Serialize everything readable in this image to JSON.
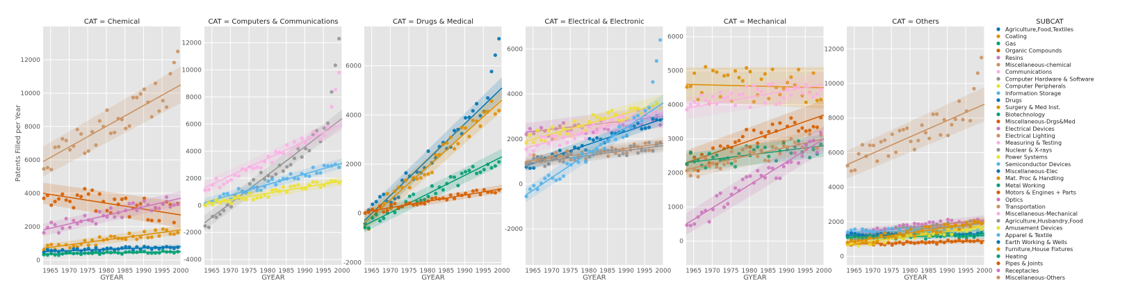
{
  "figure": {
    "ylabel": "Patents Filled per Year",
    "xlabel": "GYEAR",
    "legend_title": "SUBCAT"
  },
  "chart_data": {
    "type": "scatter",
    "x_ticks": [
      1965,
      1970,
      1975,
      1980,
      1985,
      1990,
      1995,
      2000
    ],
    "xlim": [
      1963,
      2000
    ],
    "legend_placement": "right",
    "grid": true,
    "subcategories": [
      {
        "name": "Agriculture,Food,Textiles",
        "color": "#0173b2"
      },
      {
        "name": "Coating",
        "color": "#de8f05"
      },
      {
        "name": "Gas",
        "color": "#029e73"
      },
      {
        "name": "Organic Compounds",
        "color": "#d55e00"
      },
      {
        "name": "Resins",
        "color": "#cc78bc"
      },
      {
        "name": "Miscellaneous-chemical",
        "color": "#ca9161"
      },
      {
        "name": "Communications",
        "color": "#fbafe4"
      },
      {
        "name": "Computer Hardware & Software",
        "color": "#949494"
      },
      {
        "name": "Computer Peripherals",
        "color": "#ece133"
      },
      {
        "name": "Information Storage",
        "color": "#56b4e9"
      },
      {
        "name": "Drugs",
        "color": "#0173b2"
      },
      {
        "name": "Surgery & Med Inst.",
        "color": "#de8f05"
      },
      {
        "name": "Biotechnology",
        "color": "#029e73"
      },
      {
        "name": "Miscellaneous-Drgs&Med",
        "color": "#d55e00"
      },
      {
        "name": "Electrical Devices",
        "color": "#cc78bc"
      },
      {
        "name": "Electrical Lighting",
        "color": "#ca9161"
      },
      {
        "name": "Measuring & Testing",
        "color": "#fbafe4"
      },
      {
        "name": "Nuclear & X-rays",
        "color": "#949494"
      },
      {
        "name": "Power Systems",
        "color": "#ece133"
      },
      {
        "name": "Semiconductor Devices",
        "color": "#56b4e9"
      },
      {
        "name": "Miscellaneous-Elec",
        "color": "#0173b2"
      },
      {
        "name": "Mat. Proc & Handling",
        "color": "#de8f05"
      },
      {
        "name": "Metal Working",
        "color": "#029e73"
      },
      {
        "name": "Motors & Engines + Parts",
        "color": "#d55e00"
      },
      {
        "name": "Optics",
        "color": "#cc78bc"
      },
      {
        "name": "Transportation",
        "color": "#ca9161"
      },
      {
        "name": "Miscellaneous-Mechanical",
        "color": "#fbafe4"
      },
      {
        "name": "Agriculture,Husbandry,Food",
        "color": "#949494"
      },
      {
        "name": "Amusement Devices",
        "color": "#ece133"
      },
      {
        "name": "Apparel & Textile",
        "color": "#56b4e9"
      },
      {
        "name": "Earth Working & Wells",
        "color": "#0173b2"
      },
      {
        "name": "Furniture,House Fixtures",
        "color": "#de8f05"
      },
      {
        "name": "Heating",
        "color": "#029e73"
      },
      {
        "name": "Pipes & Joints",
        "color": "#d55e00"
      },
      {
        "name": "Receptacles",
        "color": "#cc78bc"
      },
      {
        "name": "Miscellaneous-Others",
        "color": "#ca9161"
      }
    ],
    "panels": [
      {
        "title": "CAT = Chemical",
        "ylim": [
          -300,
          14000
        ],
        "yticks": [
          0,
          2000,
          4000,
          6000,
          8000,
          10000,
          12000
        ],
        "series": [
          {
            "subcat": "Miscellaneous-chemical",
            "start": 5900,
            "end": 10500,
            "spread": 1000,
            "tail": 12500
          },
          {
            "subcat": "Organic Compounds",
            "start": 4000,
            "end": 2700,
            "spread": 700
          },
          {
            "subcat": "Resins",
            "start": 1800,
            "end": 3700,
            "spread": 400
          },
          {
            "subcat": "Coating",
            "start": 700,
            "end": 1800,
            "spread": 250
          },
          {
            "subcat": "Agriculture,Food,Textiles",
            "start": 500,
            "end": 800,
            "spread": 120
          },
          {
            "subcat": "Gas",
            "start": 350,
            "end": 500,
            "spread": 80
          }
        ]
      },
      {
        "title": "CAT = Computers & Communications",
        "ylim": [
          -4400,
          13200
        ],
        "yticks": [
          -4000,
          -2000,
          0,
          2000,
          4000,
          6000,
          8000,
          10000,
          12000
        ],
        "series": [
          {
            "subcat": "Computer Hardware & Software",
            "start": -1300,
            "end": 6400,
            "spread": 600,
            "tail": 12300
          },
          {
            "subcat": "Communications",
            "start": 1300,
            "end": 6000,
            "spread": 500,
            "tail": 9800
          },
          {
            "subcat": "Information Storage",
            "start": 200,
            "end": 3100,
            "spread": 350
          },
          {
            "subcat": "Computer Peripherals",
            "start": 100,
            "end": 1800,
            "spread": 300
          }
        ]
      },
      {
        "title": "CAT = Drugs & Medical",
        "ylim": [
          -2100,
          7600
        ],
        "yticks": [
          -2000,
          0,
          2000,
          4000,
          6000
        ],
        "series": [
          {
            "subcat": "Drugs",
            "start": -300,
            "end": 5100,
            "spread": 400,
            "tail": 7100
          },
          {
            "subcat": "Surgery & Med Inst.",
            "start": -400,
            "end": 4600,
            "spread": 400
          },
          {
            "subcat": "Biotechnology",
            "start": -500,
            "end": 2300,
            "spread": 300
          },
          {
            "subcat": "Miscellaneous-Drgs&Med",
            "start": 50,
            "end": 1000,
            "spread": 150
          }
        ]
      },
      {
        "title": "CAT = Electrical & Electronic",
        "ylim": [
          -3600,
          7000
        ],
        "yticks": [
          -2000,
          0,
          2000,
          4000,
          6000
        ],
        "series": [
          {
            "subcat": "Electrical Devices",
            "start": 2300,
            "end": 3000,
            "spread": 450
          },
          {
            "subcat": "Power Systems",
            "start": 1900,
            "end": 3600,
            "spread": 350
          },
          {
            "subcat": "Measuring & Testing",
            "start": 1600,
            "end": 3200,
            "spread": 350
          },
          {
            "subcat": "Miscellaneous-Elec",
            "start": 800,
            "end": 2900,
            "spread": 250
          },
          {
            "subcat": "Electrical Lighting",
            "start": 1000,
            "end": 1800,
            "spread": 250
          },
          {
            "subcat": "Nuclear & X-rays",
            "start": 900,
            "end": 1700,
            "spread": 250
          },
          {
            "subcat": "Semiconductor Devices",
            "start": -500,
            "end": 3600,
            "spread": 350,
            "tail": 6400
          }
        ]
      },
      {
        "title": "CAT = Mechanical",
        "ylim": [
          -700,
          6300
        ],
        "yticks": [
          0,
          1000,
          2000,
          3000,
          4000,
          5000,
          6000
        ],
        "series": [
          {
            "subcat": "Mat. Proc & Handling",
            "start": 4600,
            "end": 4500,
            "spread": 550
          },
          {
            "subcat": "Miscellaneous-Mechanical",
            "start": 3900,
            "end": 4600,
            "spread": 350
          },
          {
            "subcat": "Motors & Engines + Parts",
            "start": 2300,
            "end": 3700,
            "spread": 400
          },
          {
            "subcat": "Metal Working",
            "start": 2300,
            "end": 2800,
            "spread": 300
          },
          {
            "subcat": "Transportation",
            "start": 2100,
            "end": 3000,
            "spread": 300
          },
          {
            "subcat": "Optics",
            "start": 500,
            "end": 3000,
            "spread": 350
          }
        ]
      },
      {
        "title": "CAT = Others",
        "ylim": [
          -500,
          13300
        ],
        "yticks": [
          0,
          2000,
          4000,
          6000,
          8000,
          10000,
          12000
        ],
        "series": [
          {
            "subcat": "Miscellaneous-Others",
            "start": 5300,
            "end": 8800,
            "spread": 900,
            "tail": 11500
          },
          {
            "subcat": "Receptacles",
            "start": 1300,
            "end": 2100,
            "spread": 250
          },
          {
            "subcat": "Agriculture,Husbandry,Food",
            "start": 1200,
            "end": 1900,
            "spread": 250
          },
          {
            "subcat": "Apparel & Textile",
            "start": 1400,
            "end": 1500,
            "spread": 200
          },
          {
            "subcat": "Earth Working & Wells",
            "start": 1200,
            "end": 1300,
            "spread": 150
          },
          {
            "subcat": "Heating",
            "start": 1100,
            "end": 1200,
            "spread": 150
          },
          {
            "subcat": "Pipes & Joints",
            "start": 700,
            "end": 900,
            "spread": 120
          },
          {
            "subcat": "Amusement Devices",
            "start": 700,
            "end": 1700,
            "spread": 200
          },
          {
            "subcat": "Furniture,House Fixtures",
            "start": 800,
            "end": 2000,
            "spread": 250
          }
        ]
      }
    ]
  }
}
